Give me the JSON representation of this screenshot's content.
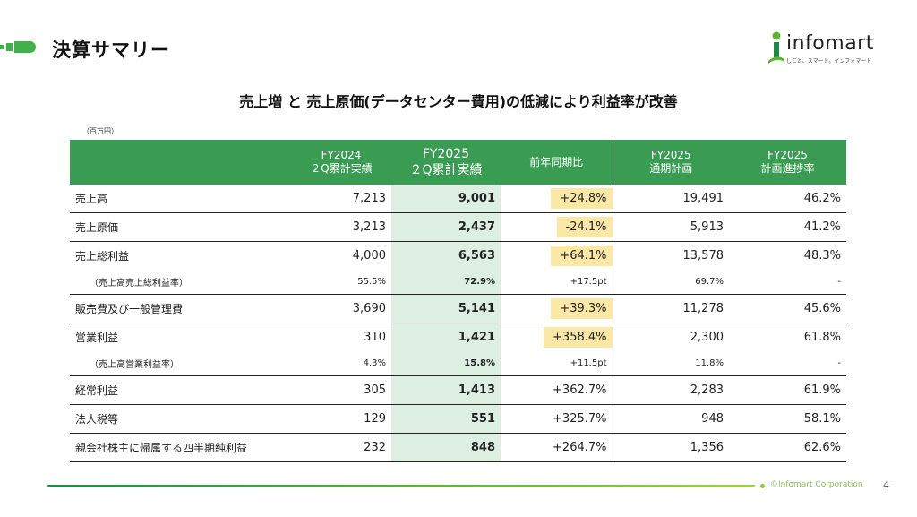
{
  "header": {
    "title": "決算サマリー"
  },
  "logo": {
    "name": "infomart",
    "tagline": "しごと、スマート。インフォマート"
  },
  "subtitle": "売上増 と 売上原価(データセンター費用)の低減により利益率が改善",
  "unit": "（百万円）",
  "table": {
    "columns": [
      {
        "line1": "FY2024",
        "line2": "２Q累計実績"
      },
      {
        "line1": "FY2025",
        "line2": "２Q累計実績"
      },
      {
        "line1": "前年同期比",
        "line2": ""
      },
      {
        "line1": "FY2025",
        "line2": "通期計画"
      },
      {
        "line1": "FY2025",
        "line2": "計画進捗率"
      }
    ],
    "rows": [
      {
        "label": "売上高",
        "fy2024": "7,213",
        "fy2025": "9,001",
        "yoy": "+24.8%",
        "plan": "19,491",
        "progress": "46.2%"
      },
      {
        "label": "売上原価",
        "fy2024": "3,213",
        "fy2025": "2,437",
        "yoy": "-24.1%",
        "plan": "5,913",
        "progress": "41.2%"
      },
      {
        "label": "売上総利益",
        "fy2024": "4,000",
        "fy2025": "6,563",
        "yoy": "+64.1%",
        "plan": "13,578",
        "progress": "48.3%"
      },
      {
        "label": "（売上高売上総利益率）",
        "fy2024": "55.5%",
        "fy2025": "72.9%",
        "yoy": "+17.5pt",
        "plan": "69.7%",
        "progress": "-"
      },
      {
        "label": "販売費及び一般管理費",
        "fy2024": "3,690",
        "fy2025": "5,141",
        "yoy": "+39.3%",
        "plan": "11,278",
        "progress": "45.6%"
      },
      {
        "label": "営業利益",
        "fy2024": "310",
        "fy2025": "1,421",
        "yoy": "+358.4%",
        "plan": "2,300",
        "progress": "61.8%"
      },
      {
        "label": "（売上高営業利益率）",
        "fy2024": "4.3%",
        "fy2025": "15.8%",
        "yoy": "+11.5pt",
        "plan": "11.8%",
        "progress": "-"
      },
      {
        "label": "経常利益",
        "fy2024": "305",
        "fy2025": "1,413",
        "yoy": "+362.7%",
        "plan": "2,283",
        "progress": "61.9%"
      },
      {
        "label": "法人税等",
        "fy2024": "129",
        "fy2025": "551",
        "yoy": "+325.7%",
        "plan": "948",
        "progress": "58.1%"
      },
      {
        "label": "親会社株主に帰属する四半期純利益",
        "fy2024": "232",
        "fy2025": "848",
        "yoy": "+264.7%",
        "plan": "1,356",
        "progress": "62.6%"
      }
    ]
  },
  "footer": {
    "copyright": "©Infomart Corporation",
    "page": "4"
  },
  "colors": {
    "header_green": "#3a9b52",
    "current_col": "#dcefe2",
    "highlight": "#fbe8a6"
  }
}
